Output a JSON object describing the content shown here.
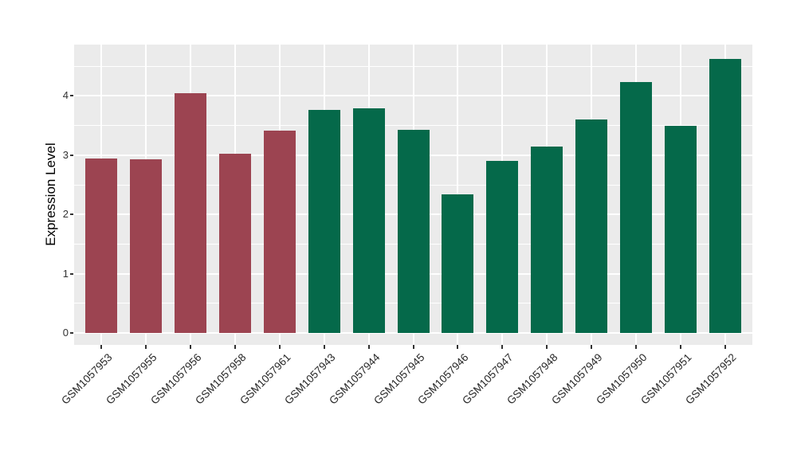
{
  "figure": {
    "background": "#FFFFFF",
    "panel_background": "#EBEBEB",
    "grid_color": "#FFFFFF",
    "axis_tick_text_color": "#333333",
    "x_label_text_color": "#262626",
    "axis_title_color": "#000000",
    "group_colors": {
      "red_group": "#9C4451",
      "green_group": "#05694A"
    }
  },
  "chart_data": {
    "type": "bar",
    "title": "",
    "xlabel": "",
    "ylabel": "Expression Level",
    "categories": [
      "GSM1057953",
      "GSM1057955",
      "GSM1057956",
      "GSM1057958",
      "GSM1057961",
      "GSM1057943",
      "GSM1057944",
      "GSM1057945",
      "GSM1057946",
      "GSM1057947",
      "GSM1057948",
      "GSM1057949",
      "GSM1057950",
      "GSM1057951",
      "GSM1057952"
    ],
    "values": [
      2.95,
      2.93,
      4.05,
      3.02,
      3.41,
      3.77,
      3.79,
      3.43,
      2.34,
      2.9,
      3.14,
      3.6,
      4.24,
      3.5,
      4.62
    ],
    "bar_colors": [
      "#9C4451",
      "#9C4451",
      "#9C4451",
      "#9C4451",
      "#9C4451",
      "#05694A",
      "#05694A",
      "#05694A",
      "#05694A",
      "#05694A",
      "#05694A",
      "#05694A",
      "#05694A",
      "#05694A",
      "#05694A"
    ],
    "series": [
      {
        "name": "red_group",
        "categories": [
          "GSM1057953",
          "GSM1057955",
          "GSM1057956",
          "GSM1057958",
          "GSM1057961"
        ],
        "values": [
          2.95,
          2.93,
          4.05,
          3.02,
          3.41
        ],
        "color": "#9C4451"
      },
      {
        "name": "green_group",
        "categories": [
          "GSM1057943",
          "GSM1057944",
          "GSM1057945",
          "GSM1057946",
          "GSM1057947",
          "GSM1057948",
          "GSM1057949",
          "GSM1057950",
          "GSM1057951",
          "GSM1057952"
        ],
        "values": [
          3.77,
          3.79,
          3.43,
          2.34,
          2.9,
          3.14,
          3.6,
          4.24,
          3.5,
          4.62
        ],
        "color": "#05694A"
      }
    ],
    "y_ticks": [
      0,
      1,
      2,
      3,
      4
    ],
    "y_tick_labels": [
      "0",
      "1",
      "2",
      "3",
      "4"
    ],
    "y_minor_grid_step": 0.5,
    "ylim": [
      -0.2,
      4.87
    ],
    "grid": "major and minor horizontal white lines, major vertical white line per category",
    "legend": "none",
    "x_label_rotation_deg": 45
  }
}
